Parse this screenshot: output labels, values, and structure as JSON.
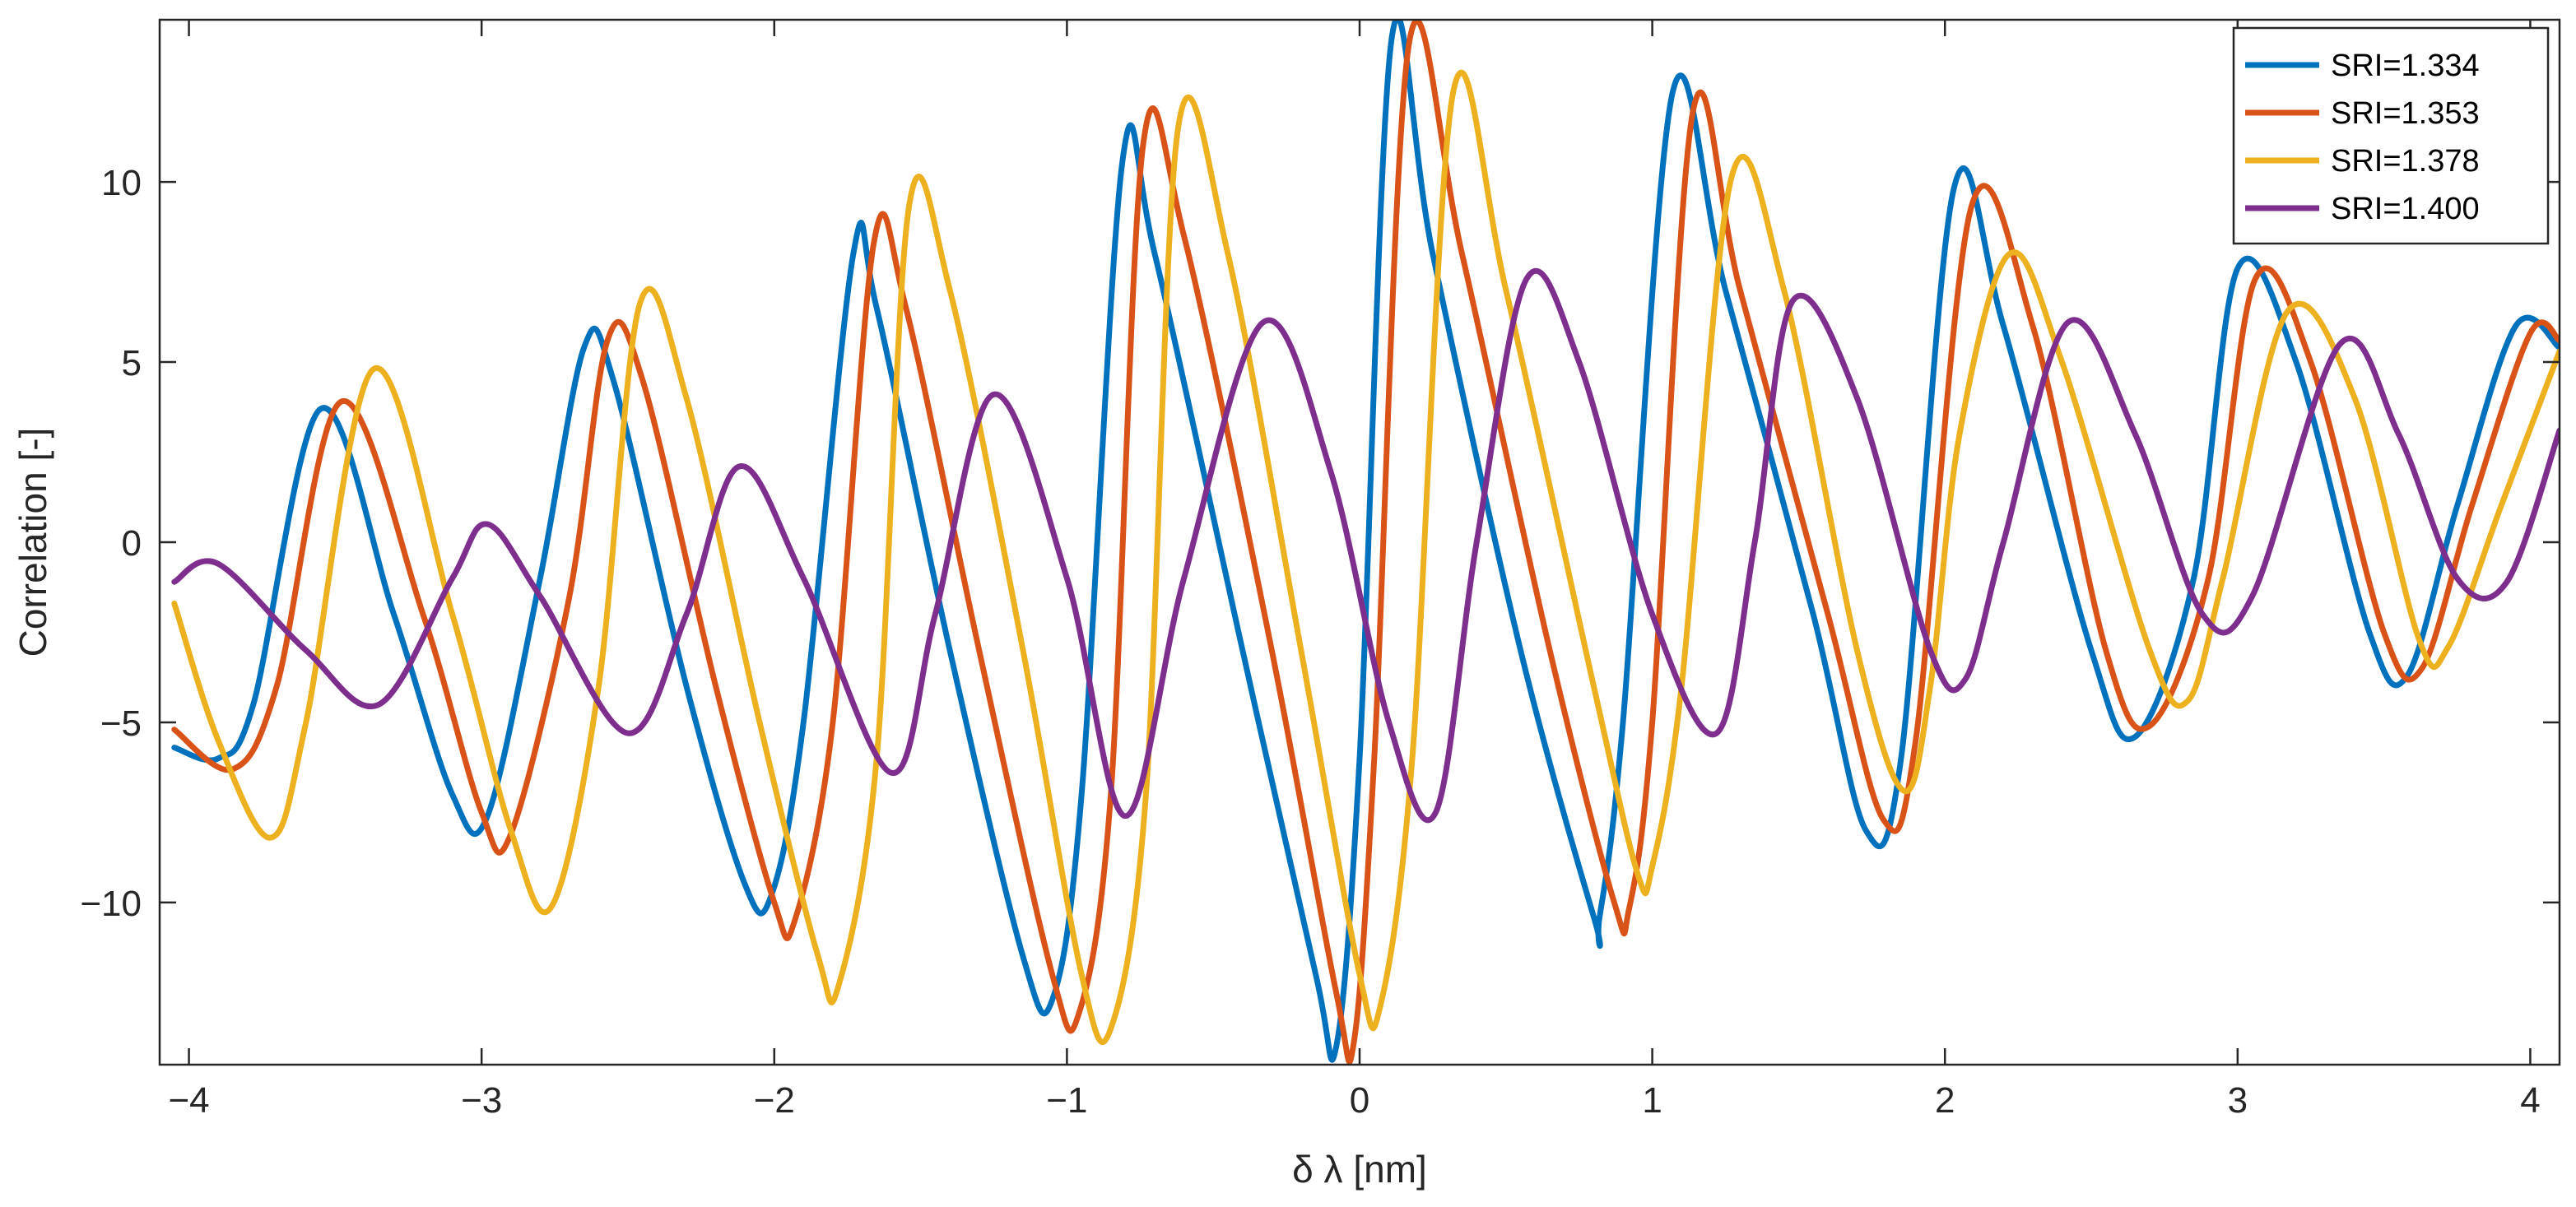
{
  "chart_data": {
    "type": "line",
    "title": "",
    "xlabel": "δ λ [nm]",
    "ylabel": "Correlation [-]",
    "xlim": [
      -4.1,
      4.1
    ],
    "ylim": [
      -14.5,
      14.5
    ],
    "xticks": [
      -4,
      -3,
      -2,
      -1,
      0,
      1,
      2,
      3,
      4
    ],
    "xtick_labels": [
      "−4",
      "−3",
      "−2",
      "−1",
      "0",
      "1",
      "2",
      "3",
      "4"
    ],
    "yticks": [
      -10,
      -5,
      0,
      5,
      10
    ],
    "ytick_labels": [
      "−10",
      "−5",
      "0",
      "5",
      "10"
    ],
    "grid": false,
    "legend_position": "top-right",
    "series": [
      {
        "name": "SRI=1.334",
        "color": "#0072BD",
        "x": [
          -4.05,
          -3.9,
          -3.78,
          -3.55,
          -3.3,
          -3.1,
          -2.98,
          -2.8,
          -2.65,
          -2.55,
          -2.3,
          -2.1,
          -2.01,
          -1.9,
          -1.73,
          -1.65,
          -1.4,
          -1.15,
          -1.05,
          -0.95,
          -0.81,
          -0.7,
          -0.4,
          -0.15,
          -0.08,
          0.0,
          0.11,
          0.25,
          0.55,
          0.8,
          0.82,
          0.9,
          1.07,
          1.25,
          1.55,
          1.73,
          1.85,
          2.03,
          2.2,
          2.5,
          2.65,
          2.85,
          3.0,
          3.2,
          3.45,
          3.58,
          3.75,
          3.95,
          4.1
        ],
        "y": [
          -5.7,
          -6.0,
          -4.5,
          3.7,
          -2.0,
          -7.0,
          -7.6,
          -1.0,
          5.4,
          4.5,
          -4.0,
          -9.5,
          -9.8,
          -5.0,
          8.0,
          6.5,
          -3.0,
          -11.5,
          -12.7,
          -7.0,
          10.6,
          8.0,
          -3.0,
          -12.0,
          -14.0,
          -6.0,
          14.0,
          8.0,
          -3.0,
          -10.4,
          -10.4,
          -5.0,
          12.5,
          7.0,
          -2.0,
          -8.0,
          -6.0,
          9.8,
          6.0,
          -3.0,
          -5.4,
          -1.0,
          7.6,
          5.0,
          -2.5,
          -3.7,
          1.0,
          6.0,
          5.4
        ]
      },
      {
        "name": "SRI=1.353",
        "color": "#D95319",
        "x": [
          -4.05,
          -3.85,
          -3.7,
          -3.48,
          -3.2,
          -3.0,
          -2.9,
          -2.7,
          -2.57,
          -2.45,
          -2.2,
          -2.0,
          -1.93,
          -1.8,
          -1.66,
          -1.55,
          -1.3,
          -1.05,
          -0.96,
          -0.85,
          -0.74,
          -0.6,
          -0.3,
          -0.08,
          -0.02,
          0.05,
          0.17,
          0.35,
          0.65,
          0.87,
          0.92,
          1.0,
          1.14,
          1.3,
          1.6,
          1.79,
          1.9,
          2.09,
          2.3,
          2.55,
          2.7,
          2.9,
          3.06,
          3.25,
          3.5,
          3.63,
          3.8,
          4.0,
          4.1
        ],
        "y": [
          -5.2,
          -6.3,
          -4.0,
          3.9,
          -2.0,
          -7.5,
          -8.1,
          -1.5,
          5.6,
          4.5,
          -4.0,
          -10.0,
          -10.5,
          -5.0,
          8.3,
          6.5,
          -3.0,
          -12.0,
          -13.1,
          -7.0,
          11.0,
          8.5,
          -3.0,
          -12.5,
          -13.9,
          -6.0,
          13.9,
          8.0,
          -3.0,
          -10.0,
          -10.2,
          -5.0,
          12.0,
          7.0,
          -2.0,
          -7.7,
          -5.5,
          9.3,
          6.0,
          -3.0,
          -5.1,
          -1.0,
          7.3,
          5.0,
          -2.5,
          -3.5,
          1.0,
          5.8,
          5.6
        ]
      },
      {
        "name": "SRI=1.378",
        "color": "#EDB120",
        "x": [
          -4.05,
          -3.9,
          -3.72,
          -3.6,
          -3.37,
          -3.1,
          -2.9,
          -2.76,
          -2.6,
          -2.46,
          -2.3,
          -2.05,
          -1.85,
          -1.78,
          -1.65,
          -1.54,
          -1.4,
          -1.15,
          -0.95,
          -0.85,
          -0.73,
          -0.62,
          -0.45,
          -0.2,
          0.0,
          0.07,
          0.18,
          0.32,
          0.5,
          0.8,
          0.95,
          1.0,
          1.1,
          1.27,
          1.45,
          1.7,
          1.86,
          1.95,
          2.05,
          2.22,
          2.4,
          2.7,
          2.83,
          2.95,
          3.17,
          3.4,
          3.62,
          3.72,
          3.9,
          4.1
        ],
        "y": [
          -1.7,
          -5.5,
          -8.2,
          -5.0,
          4.8,
          -2.0,
          -8.0,
          -10.1,
          -4.0,
          6.6,
          4.0,
          -5.0,
          -11.5,
          -12.3,
          -6.0,
          9.3,
          7.0,
          -3.0,
          -12.0,
          -13.5,
          -7.0,
          11.5,
          8.0,
          -3.0,
          -12.0,
          -12.9,
          -6.0,
          12.5,
          7.0,
          -4.0,
          -9.2,
          -9.0,
          -4.0,
          10.1,
          7.0,
          -3.0,
          -6.9,
          -4.0,
          3.0,
          8.0,
          5.0,
          -3.0,
          -4.4,
          -1.0,
          6.4,
          4.0,
          -2.7,
          -2.9,
          1.0,
          5.3
        ]
      },
      {
        "name": "SRI=1.400",
        "color": "#7E2F8E",
        "x": [
          -4.05,
          -3.9,
          -3.6,
          -3.35,
          -3.1,
          -2.98,
          -2.8,
          -2.5,
          -2.3,
          -2.12,
          -1.9,
          -1.6,
          -1.45,
          -1.25,
          -1.0,
          -0.8,
          -0.6,
          -0.33,
          -0.1,
          0.1,
          0.26,
          0.4,
          0.57,
          0.75,
          1.0,
          1.22,
          1.35,
          1.48,
          1.7,
          1.95,
          2.07,
          2.2,
          2.42,
          2.65,
          2.88,
          3.05,
          3.35,
          3.55,
          3.75,
          3.92,
          4.1
        ],
        "y": [
          -1.1,
          -0.6,
          -3.0,
          -4.5,
          -1.0,
          0.5,
          -1.5,
          -5.3,
          -2.0,
          2.1,
          -1.0,
          -6.4,
          -2.0,
          4.1,
          -1.0,
          -7.6,
          -1.0,
          6.1,
          2.0,
          -5.0,
          -7.5,
          0.0,
          7.3,
          5.0,
          -2.0,
          -5.3,
          0.0,
          6.7,
          4.0,
          -3.0,
          -3.8,
          0.0,
          6.1,
          3.0,
          -2.0,
          -1.5,
          5.5,
          3.0,
          -1.0,
          -1.1,
          3.1
        ]
      }
    ]
  }
}
